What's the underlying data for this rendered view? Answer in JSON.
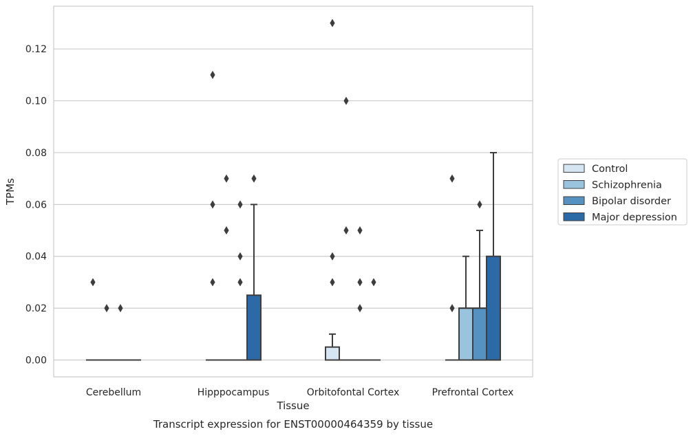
{
  "chart_data": {
    "type": "box",
    "title": "",
    "caption": "Transcript expression for ENST00000464359 by tissue",
    "xlabel": "Tissue",
    "ylabel": "TPMs",
    "ylim": [
      -0.0065,
      0.1365
    ],
    "yticks": [
      "0.00",
      "0.02",
      "0.04",
      "0.06",
      "0.08",
      "0.10",
      "0.12"
    ],
    "grid": "horizontal",
    "legend_position": "right",
    "categories": [
      "Cerebellum",
      "Hipppocampus",
      "Orbitofontal Cortex",
      "Prefrontal Cortex"
    ],
    "series": [
      {
        "name": "Control",
        "color": "#d6e5f2",
        "boxes": [
          {
            "q1": 0,
            "median": 0,
            "q3": 0,
            "whisker_low": 0,
            "whisker_high": 0,
            "outliers": [
              0.03
            ]
          },
          {
            "q1": 0,
            "median": 0,
            "q3": 0,
            "whisker_low": 0,
            "whisker_high": 0,
            "outliers": [
              0.03,
              0.06,
              0.11
            ]
          },
          {
            "q1": 0,
            "median": 0,
            "q3": 0.005,
            "whisker_low": 0,
            "whisker_high": 0.01,
            "outliers": [
              0.03,
              0.04,
              0.13
            ]
          },
          {
            "q1": 0,
            "median": 0,
            "q3": 0,
            "whisker_low": 0,
            "whisker_high": 0,
            "outliers": [
              0.02,
              0.07
            ]
          }
        ]
      },
      {
        "name": "Schizophrenia",
        "color": "#9ac4de",
        "boxes": [
          {
            "q1": 0,
            "median": 0,
            "q3": 0,
            "whisker_low": 0,
            "whisker_high": 0,
            "outliers": [
              0.02
            ]
          },
          {
            "q1": 0,
            "median": 0,
            "q3": 0,
            "whisker_low": 0,
            "whisker_high": 0,
            "outliers": [
              0.05,
              0.07
            ]
          },
          {
            "q1": 0,
            "median": 0,
            "q3": 0,
            "whisker_low": 0,
            "whisker_high": 0,
            "outliers": [
              0.05,
              0.1
            ]
          },
          {
            "q1": 0,
            "median": 0.02,
            "q3": 0.02,
            "whisker_low": 0,
            "whisker_high": 0.04,
            "outliers": []
          }
        ]
      },
      {
        "name": "Bipolar disorder",
        "color": "#5592c2",
        "boxes": [
          {
            "q1": 0,
            "median": 0,
            "q3": 0,
            "whisker_low": 0,
            "whisker_high": 0,
            "outliers": [
              0.02
            ]
          },
          {
            "q1": 0,
            "median": 0,
            "q3": 0,
            "whisker_low": 0,
            "whisker_high": 0,
            "outliers": [
              0.03,
              0.04,
              0.06
            ]
          },
          {
            "q1": 0,
            "median": 0,
            "q3": 0,
            "whisker_low": 0,
            "whisker_high": 0,
            "outliers": [
              0.02,
              0.03,
              0.05
            ]
          },
          {
            "q1": 0,
            "median": 0.02,
            "q3": 0.02,
            "whisker_low": 0,
            "whisker_high": 0.05,
            "outliers": [
              0.06
            ]
          }
        ]
      },
      {
        "name": "Major depression",
        "color": "#2b6aa6",
        "boxes": [
          {
            "q1": 0,
            "median": 0,
            "q3": 0,
            "whisker_low": 0,
            "whisker_high": 0,
            "outliers": []
          },
          {
            "q1": 0,
            "median": 0,
            "q3": 0.025,
            "whisker_low": 0,
            "whisker_high": 0.06,
            "outliers": [
              0.07
            ]
          },
          {
            "q1": 0,
            "median": 0,
            "q3": 0,
            "whisker_low": 0,
            "whisker_high": 0,
            "outliers": [
              0.03
            ]
          },
          {
            "q1": 0,
            "median": 0,
            "q3": 0.04,
            "whisker_low": 0,
            "whisker_high": 0.08,
            "outliers": []
          }
        ]
      }
    ]
  }
}
